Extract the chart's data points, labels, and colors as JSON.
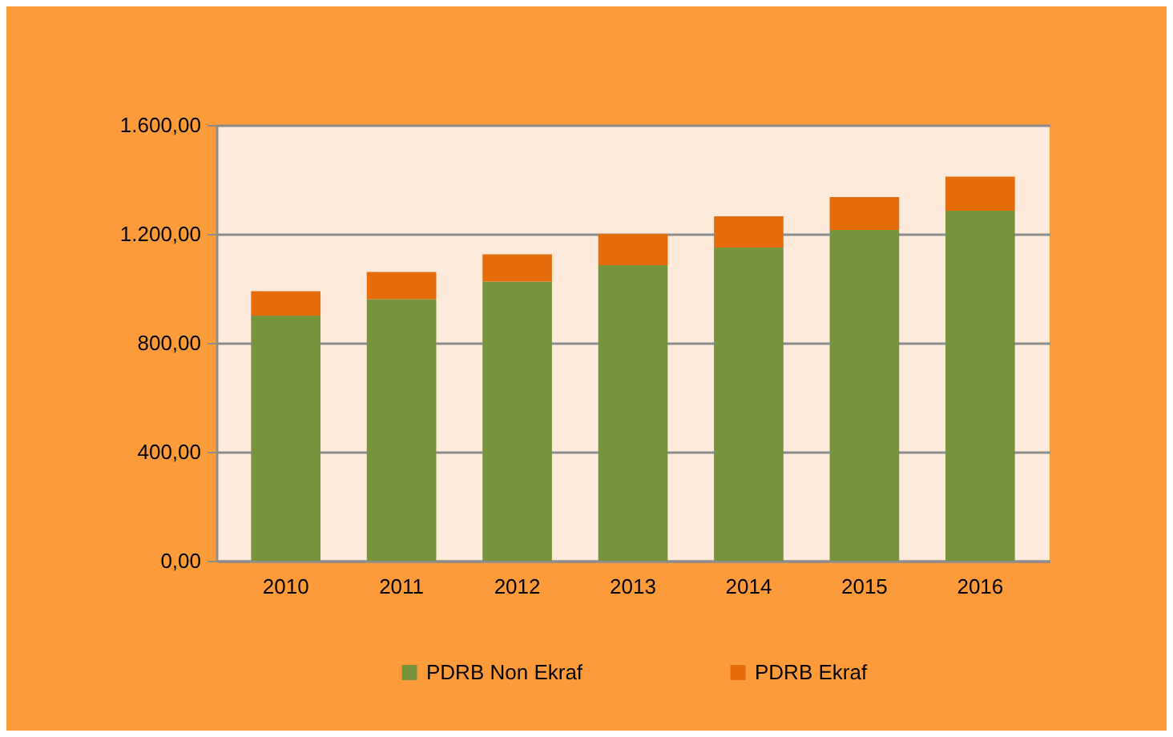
{
  "chart_data": {
    "type": "bar",
    "stacked": true,
    "categories": [
      "2010",
      "2011",
      "2012",
      "2013",
      "2014",
      "2015",
      "2016"
    ],
    "series": [
      {
        "name": "PDRB Non Ekraf",
        "color": "#77933c",
        "values": [
          900,
          960,
          1025,
          1085,
          1150,
          1215,
          1285
        ]
      },
      {
        "name": "PDRB Ekraf",
        "color": "#e46c0a",
        "values": [
          90,
          100,
          100,
          115,
          115,
          120,
          125
        ]
      }
    ],
    "ylim": [
      0,
      1600
    ],
    "yticks": [
      {
        "value": 0,
        "label": "0,00"
      },
      {
        "value": 400,
        "label": "400,00"
      },
      {
        "value": 800,
        "label": "800,00"
      },
      {
        "value": 1200,
        "label": "1.200,00"
      },
      {
        "value": 1600,
        "label": "1.600,00"
      }
    ],
    "grid": "y",
    "legend": "bottom"
  }
}
